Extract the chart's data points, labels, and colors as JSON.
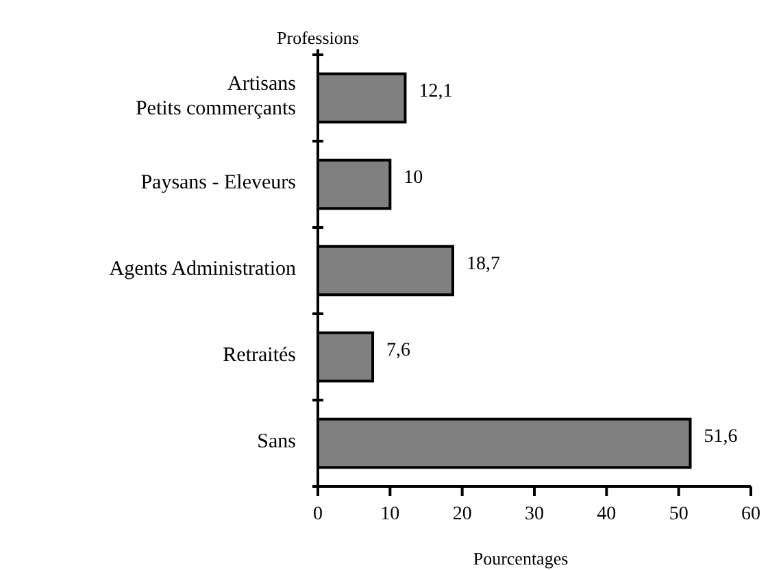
{
  "chart_data": {
    "type": "bar",
    "orientation": "horizontal",
    "ylabel": "Professions",
    "xlabel": "Pourcentages",
    "categories": [
      "Artisans\nPetits commerçants",
      "Paysans - Eleveurs",
      "Agents Administration",
      "Retraités",
      "Sans"
    ],
    "values": [
      12.1,
      10,
      18.7,
      7.6,
      51.6
    ],
    "value_labels": [
      "12,1",
      "10",
      "18,7",
      "7,6",
      "51,6"
    ],
    "color": "#808080",
    "xlim": [
      0,
      60
    ],
    "xticks": [
      0,
      10,
      20,
      30,
      40,
      50,
      60
    ]
  }
}
